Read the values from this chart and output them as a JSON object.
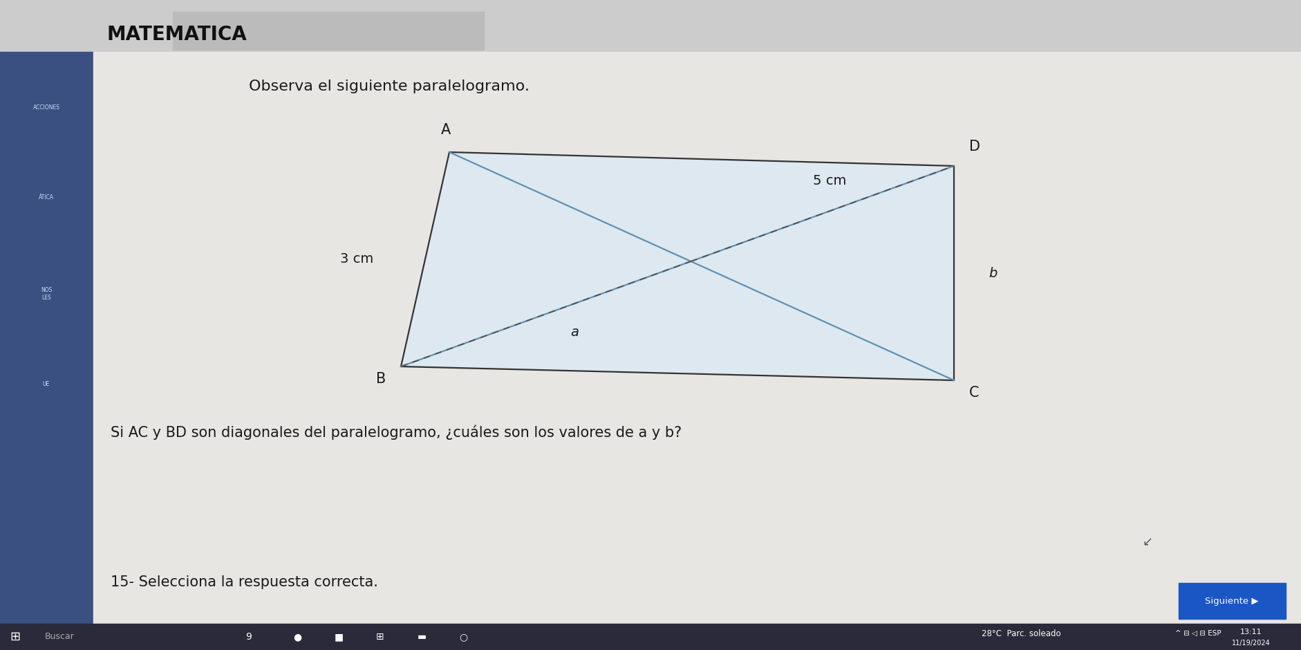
{
  "title": "MATEMATICA",
  "subtitle": "Observa el siguiente paralelogramo.",
  "question": "Si AC y BD son diagonales del paralelogramo, ¿cuáles son los valores de a y b?",
  "question_number": "15- Selecciona la respuesta correcta.",
  "label_3cm": "3 cm",
  "label_5cm": "5 cm",
  "label_a": "a",
  "label_b": "b",
  "bg_main": "#c8c8c8",
  "sidebar_color": "#3a5080",
  "content_bg": "#e8e6e2",
  "parallelogram_fill": "#dde8f0",
  "line_color": "#6090b0",
  "border_color": "#333333",
  "dashed_color": "#555555",
  "text_color": "#1a1a1a",
  "title_color": "#111111",
  "taskbar_color": "#2a2a3a",
  "topbar_color": "#cccccc",
  "sidebar_text_color": "#ccddff",
  "next_btn_color": "#1a56c4",
  "A": [
    6.5,
    7.2
  ],
  "D": [
    13.8,
    7.0
  ],
  "C": [
    13.8,
    3.9
  ],
  "B": [
    5.8,
    4.1
  ]
}
